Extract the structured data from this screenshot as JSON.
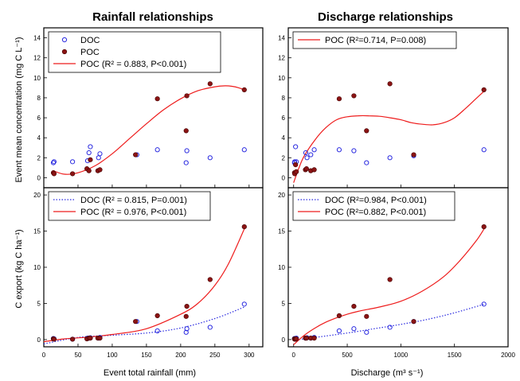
{
  "colors": {
    "doc": "#2a2ae0",
    "poc_marker": "#8b1414",
    "poc_line": "#ee1c1c",
    "doc_line": "#2a2ae0"
  },
  "chart_data": [
    {
      "type": "scatter",
      "title": "Rainfall relationships",
      "xlabel": "",
      "ylabel": "Event mean concentration (mg C L⁻¹)",
      "xlim": [
        0,
        320
      ],
      "ylim": [
        -1,
        15
      ],
      "xticks": [
        0,
        50,
        100,
        150,
        200,
        250,
        300
      ],
      "yticks": [
        0,
        2,
        4,
        6,
        8,
        10,
        12,
        14
      ],
      "legend": "top-left",
      "series": [
        {
          "name": "DOC",
          "x": [
            14,
            15,
            42,
            64,
            66,
            68,
            80,
            82,
            136,
            166,
            208,
            209,
            243,
            293
          ],
          "y": [
            1.5,
            1.6,
            1.6,
            1.7,
            2.5,
            3.1,
            2.0,
            2.4,
            2.3,
            2.8,
            1.5,
            2.7,
            2.0,
            2.8
          ]
        },
        {
          "name": "POC",
          "x": [
            14,
            15,
            42,
            63,
            66,
            68,
            79,
            82,
            134,
            166,
            208,
            209,
            243,
            293
          ],
          "y": [
            0.5,
            0.4,
            0.4,
            0.9,
            0.7,
            1.8,
            0.7,
            0.8,
            2.3,
            7.9,
            4.7,
            8.2,
            9.4,
            8.8
          ]
        }
      ],
      "fit": {
        "name": "POC (R² = 0.883, P<0.001)",
        "x": [
          14,
          30,
          50,
          75,
          100,
          125,
          150,
          175,
          200,
          225,
          250,
          265,
          275,
          285,
          293
        ],
        "y": [
          0.7,
          0.35,
          0.5,
          1.2,
          2.4,
          3.9,
          5.4,
          6.8,
          7.9,
          8.7,
          9.1,
          9.2,
          9.15,
          9.0,
          8.8
        ]
      }
    },
    {
      "type": "scatter",
      "title": "Discharge relationships",
      "xlabel": "",
      "ylabel": "",
      "xlim": [
        -50,
        2000
      ],
      "ylim": [
        -1,
        15
      ],
      "xticks": [
        0,
        500,
        1000,
        1500,
        2000
      ],
      "yticks": [
        0,
        2,
        4,
        6,
        8,
        10,
        12,
        14
      ],
      "legend": "top-left",
      "series": [
        {
          "name": "DOC",
          "x": [
            8,
            10,
            18,
            25,
            113,
            125,
            160,
            192,
            425,
            562,
            680,
            898,
            1120,
            1775
          ],
          "y": [
            1.5,
            1.6,
            3.1,
            1.6,
            2.5,
            2.0,
            2.3,
            2.8,
            2.8,
            2.7,
            1.5,
            2.0,
            2.2,
            2.8
          ]
        },
        {
          "name": "POC",
          "x": [
            8,
            10,
            18,
            25,
            110,
            120,
            160,
            192,
            425,
            562,
            680,
            898,
            1120,
            1775
          ],
          "y": [
            0.5,
            0.4,
            1.3,
            0.6,
            0.8,
            0.9,
            0.7,
            0.8,
            7.9,
            8.2,
            4.7,
            9.4,
            2.3,
            8.8
          ]
        }
      ],
      "fit": {
        "name": "POC (R²=0.714, P=0.008)",
        "x": [
          0,
          50,
          100,
          200,
          300,
          400,
          500,
          600,
          700,
          800,
          900,
          1000,
          1100,
          1200,
          1300,
          1400,
          1500,
          1600,
          1700,
          1780
        ],
        "y": [
          -0.5,
          1.0,
          2.2,
          3.8,
          5.0,
          5.8,
          6.1,
          6.2,
          6.2,
          6.15,
          6.0,
          5.8,
          5.5,
          5.35,
          5.3,
          5.5,
          6.0,
          6.9,
          7.9,
          8.7
        ]
      }
    },
    {
      "type": "scatter",
      "title": "",
      "xlabel": "Event total rainfall (mm)",
      "ylabel": "C export (kg C ha⁻¹)",
      "xlim": [
        0,
        320
      ],
      "ylim": [
        -1,
        21
      ],
      "xticks": [
        0,
        50,
        100,
        150,
        200,
        250,
        300
      ],
      "yticks": [
        0,
        5,
        10,
        15,
        20
      ],
      "legend": "top-left",
      "series": [
        {
          "name": "DOC",
          "x": [
            14,
            15,
            42,
            64,
            66,
            68,
            80,
            82,
            136,
            166,
            208,
            209,
            243,
            293
          ],
          "y": [
            0.15,
            0.1,
            0.05,
            0.2,
            0.2,
            0.25,
            0.2,
            0.3,
            2.5,
            1.2,
            1.0,
            1.5,
            1.7,
            4.9
          ]
        },
        {
          "name": "POC",
          "x": [
            14,
            15,
            42,
            63,
            66,
            68,
            79,
            82,
            134,
            166,
            208,
            209,
            243,
            293
          ],
          "y": [
            0.1,
            0.05,
            0.05,
            0.1,
            0.2,
            0.2,
            0.2,
            0.2,
            2.5,
            3.3,
            3.2,
            4.6,
            8.3,
            15.6
          ]
        }
      ],
      "fits": [
        {
          "name": "DOC (R² = 0.815, P=0.001)",
          "x": [
            0,
            50,
            100,
            150,
            200,
            250,
            293
          ],
          "y": [
            -0.6,
            0.3,
            0.6,
            0.9,
            1.6,
            2.9,
            4.5
          ]
        },
        {
          "name": "POC (R² = 0.976, P<0.001)",
          "x": [
            0,
            30,
            60,
            100,
            150,
            200,
            225,
            250,
            270,
            293
          ],
          "y": [
            -0.3,
            0.1,
            0.3,
            0.7,
            1.5,
            3.5,
            5.0,
            7.5,
            10.5,
            15.3
          ]
        }
      ]
    },
    {
      "type": "scatter",
      "title": "",
      "xlabel": "Discharge (m³ s⁻¹)",
      "ylabel": "",
      "xlim": [
        -50,
        2000
      ],
      "ylim": [
        -1,
        21
      ],
      "xticks": [
        0,
        500,
        1000,
        1500,
        2000
      ],
      "yticks": [
        0,
        5,
        10,
        15,
        20
      ],
      "legend": "top-left",
      "series": [
        {
          "name": "DOC",
          "x": [
            8,
            10,
            18,
            25,
            113,
            125,
            160,
            192,
            425,
            562,
            680,
            898,
            1120,
            1775
          ],
          "y": [
            0.15,
            0.1,
            0.05,
            0.2,
            0.2,
            0.25,
            0.2,
            0.3,
            1.2,
            1.5,
            1.0,
            1.7,
            2.5,
            4.9
          ]
        },
        {
          "name": "POC",
          "x": [
            8,
            10,
            18,
            25,
            110,
            120,
            160,
            192,
            425,
            562,
            680,
            898,
            1120,
            1775
          ],
          "y": [
            0.1,
            0.05,
            0.05,
            0.1,
            0.2,
            0.2,
            0.2,
            0.2,
            3.3,
            4.6,
            3.2,
            8.3,
            2.5,
            15.6
          ]
        }
      ],
      "fits": [
        {
          "name": "DOC (R²=0.984, P<0.001)",
          "x": [
            0,
            250,
            500,
            750,
            1000,
            1250,
            1500,
            1780
          ],
          "y": [
            -0.1,
            0.4,
            0.9,
            1.5,
            2.1,
            2.8,
            3.7,
            4.9
          ]
        },
        {
          "name": "POC (R²=0.882, P<0.001)",
          "x": [
            0,
            100,
            200,
            300,
            400,
            500,
            600,
            800,
            1000,
            1200,
            1400,
            1550,
            1700,
            1780
          ],
          "y": [
            -0.7,
            0.6,
            1.6,
            2.4,
            3.0,
            3.5,
            3.9,
            4.5,
            5.3,
            6.7,
            8.7,
            10.9,
            13.6,
            15.4
          ]
        }
      ]
    }
  ]
}
